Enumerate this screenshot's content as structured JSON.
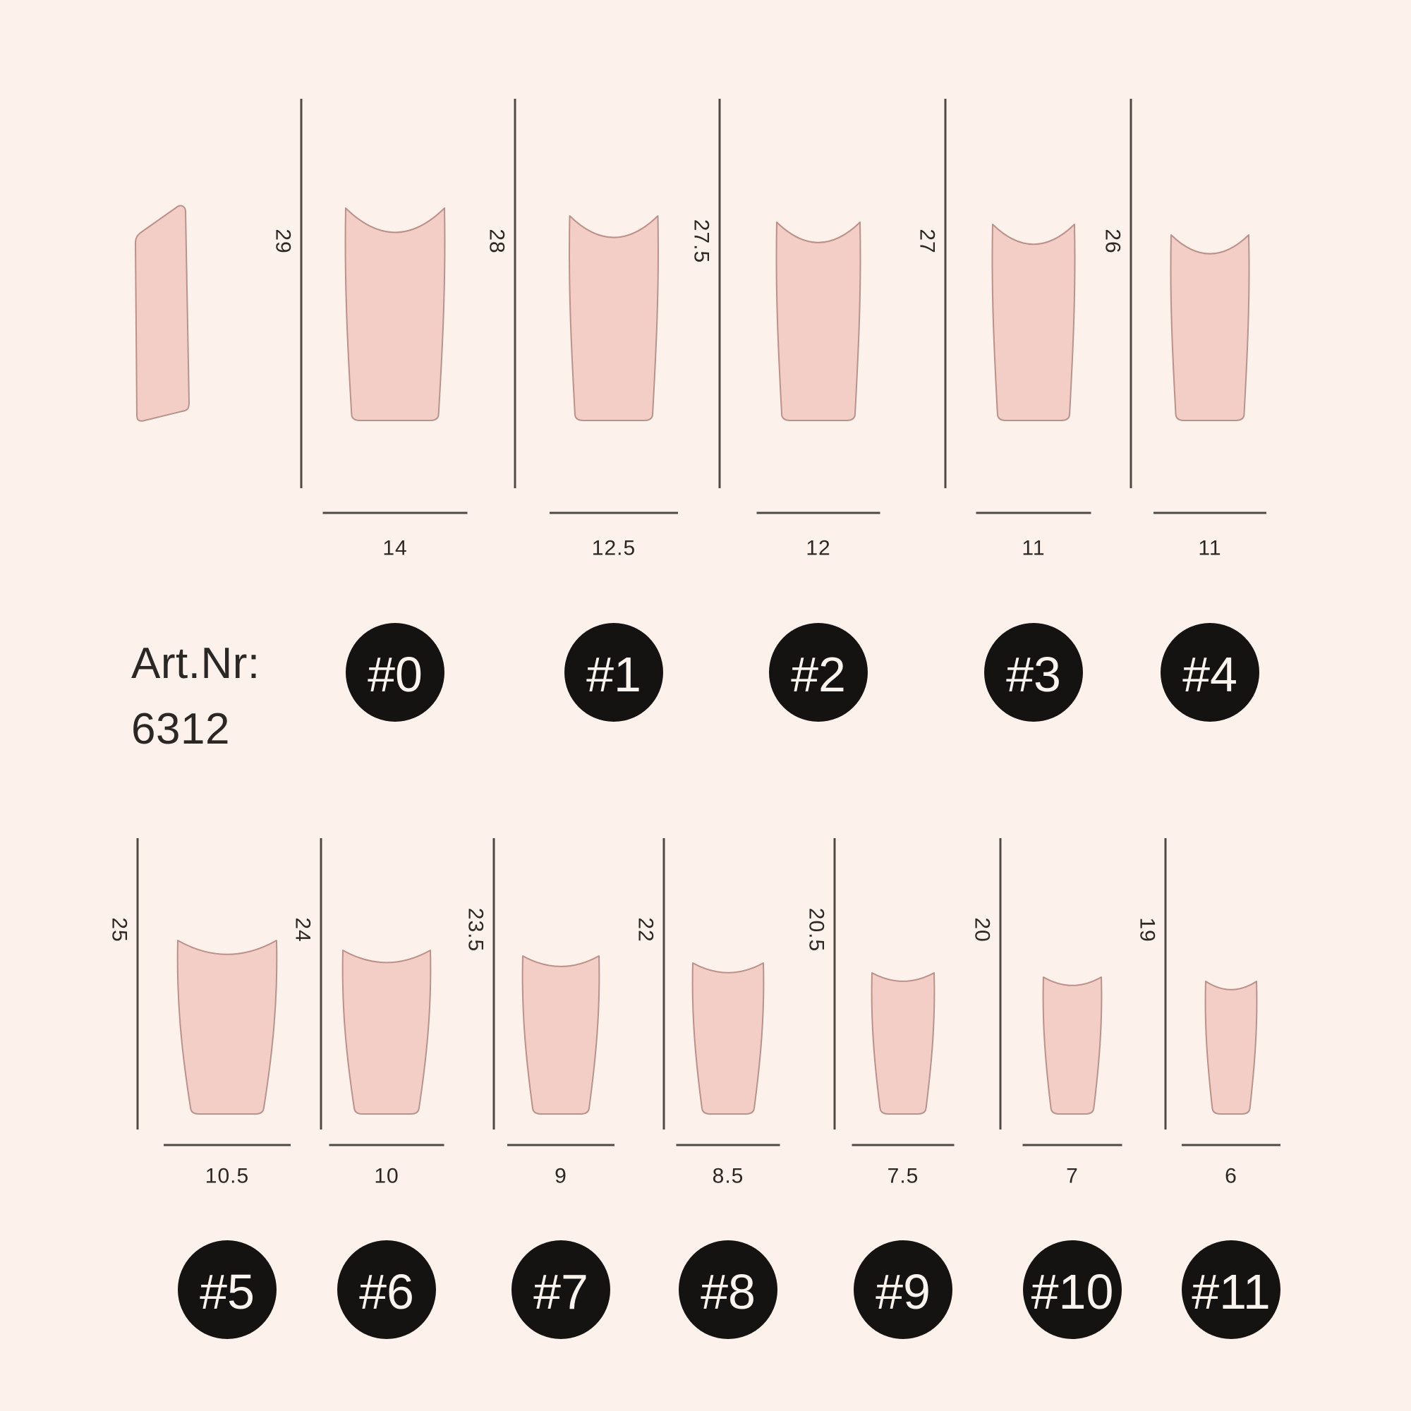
{
  "title_block": {
    "label": "Art.Nr:",
    "number": "6312"
  },
  "colors": {
    "background": "#fcf1eb",
    "nail_fill": "#f3cec6",
    "nail_outline": "#b9938b",
    "dimension_line": "#4e4944",
    "label_text": "#2a2725",
    "badge_bg": "#151312",
    "badge_text": "#fbf4ee"
  },
  "rows": [
    {
      "row": "top",
      "has_side_profile_tip": true,
      "tips": [
        {
          "badge": "#0",
          "length_mm": "29",
          "width_mm": "14"
        },
        {
          "badge": "#1",
          "length_mm": "28",
          "width_mm": "12.5"
        },
        {
          "badge": "#2",
          "length_mm": "27.5",
          "width_mm": "12"
        },
        {
          "badge": "#3",
          "length_mm": "27",
          "width_mm": "11"
        },
        {
          "badge": "#4",
          "length_mm": "26",
          "width_mm": "11"
        }
      ]
    },
    {
      "row": "bottom",
      "tips": [
        {
          "badge": "#5",
          "length_mm": "25",
          "width_mm": "10.5"
        },
        {
          "badge": "#6",
          "length_mm": "24",
          "width_mm": "10"
        },
        {
          "badge": "#7",
          "length_mm": "23.5",
          "width_mm": "9"
        },
        {
          "badge": "#8",
          "length_mm": "22",
          "width_mm": "8.5"
        },
        {
          "badge": "#9",
          "length_mm": "20.5",
          "width_mm": "7.5"
        },
        {
          "badge": "#10",
          "length_mm": "20",
          "width_mm": "7"
        },
        {
          "badge": "#11",
          "length_mm": "19",
          "width_mm": "6"
        }
      ]
    }
  ]
}
